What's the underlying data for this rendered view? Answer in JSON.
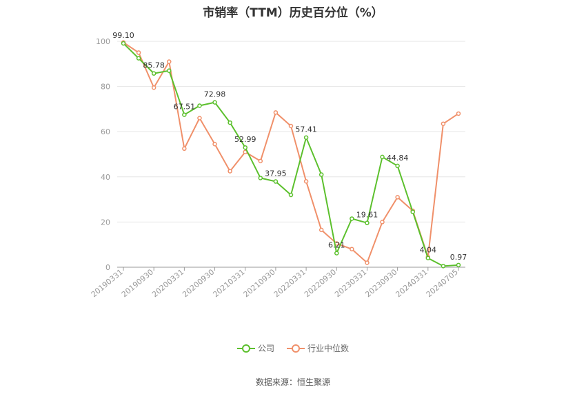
{
  "title": "市销率（TTM）历史百分位（%）",
  "source": "数据来源：恒生聚源",
  "chart_data": {
    "type": "line",
    "title": "市销率（TTM）历史百分位（%）",
    "xlabel": "",
    "ylabel": "",
    "ylim": [
      0,
      100
    ],
    "y_ticks": [
      0,
      20,
      40,
      60,
      80,
      100
    ],
    "grid": true,
    "legend_position": "bottom",
    "x": [
      "20190331",
      "20190630",
      "20190930",
      "20191231",
      "20200331",
      "20200630",
      "20200930",
      "20201231",
      "20210331",
      "20210630",
      "20210930",
      "20211231",
      "20220331",
      "20220630",
      "20220930",
      "20221231",
      "20230331",
      "20230630",
      "20230930",
      "20231231",
      "20240331",
      "20240630",
      "20240705"
    ],
    "x_tick_labels": [
      "20190331",
      "20190930",
      "20200331",
      "20200930",
      "20210331",
      "20210930",
      "20220331",
      "20220930",
      "20230331",
      "20230930",
      "20240331",
      "20240705"
    ],
    "series": [
      {
        "name": "公司",
        "color": "#5cc02d",
        "values": [
          99.1,
          92.5,
          85.78,
          87.0,
          67.51,
          71.5,
          72.98,
          64.0,
          52.99,
          39.5,
          37.95,
          32.0,
          57.41,
          41.0,
          6.21,
          21.5,
          19.61,
          48.8,
          44.84,
          24.5,
          4.04,
          0.5,
          0.97
        ],
        "labels": {
          "0": "99.10",
          "2": "85.78",
          "4": "67.51",
          "6": "72.98",
          "8": "52.99",
          "10": "37.95",
          "12": "57.41",
          "14": "6.21",
          "16": "19.61",
          "18": "44.84",
          "20": "4.04",
          "22": "0.97"
        }
      },
      {
        "name": "行业中位数",
        "color": "#f0906a",
        "values": [
          99.5,
          95.0,
          79.5,
          91.0,
          52.5,
          66.0,
          54.5,
          42.5,
          51.0,
          47.0,
          68.5,
          62.5,
          38.0,
          16.5,
          10.5,
          8.0,
          2.0,
          20.0,
          31.0,
          25.0,
          4.5,
          63.5,
          68.0
        ]
      }
    ]
  }
}
